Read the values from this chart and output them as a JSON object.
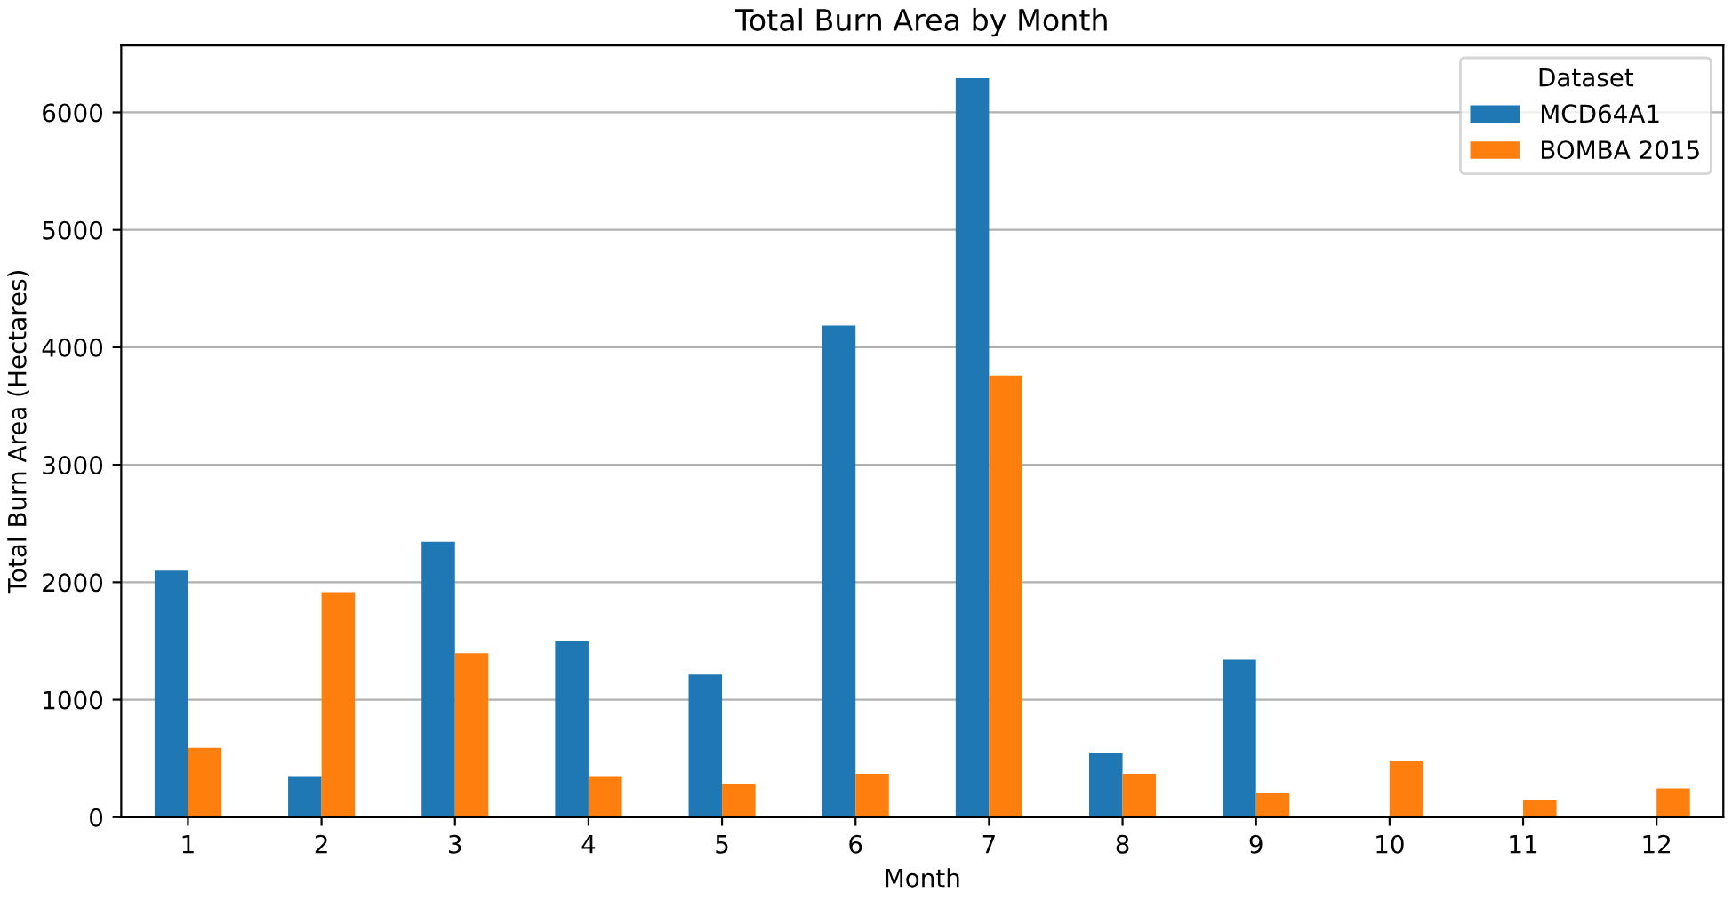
{
  "chart_data": {
    "type": "bar",
    "title": "Total Burn Area by Month",
    "xlabel": "Month",
    "ylabel": "Total Burn Area (Hectares)",
    "categories": [
      "1",
      "2",
      "3",
      "4",
      "5",
      "6",
      "7",
      "8",
      "9",
      "10",
      "11",
      "12"
    ],
    "series": [
      {
        "name": "MCD64A1",
        "color": "#1f77b4",
        "values": [
          2100,
          350,
          2345,
          1500,
          1215,
          4185,
          6290,
          550,
          1340,
          0,
          0,
          0
        ]
      },
      {
        "name": "BOMBA 2015",
        "color": "#ff7f0e",
        "values": [
          590,
          1915,
          1395,
          350,
          285,
          370,
          3760,
          370,
          210,
          475,
          145,
          245
        ]
      }
    ],
    "legend_title": "Dataset",
    "legend": "top right",
    "grid": "y",
    "ylim": [
      0,
      6570
    ],
    "yticks": [
      0,
      1000,
      2000,
      3000,
      4000,
      5000,
      6000
    ]
  }
}
